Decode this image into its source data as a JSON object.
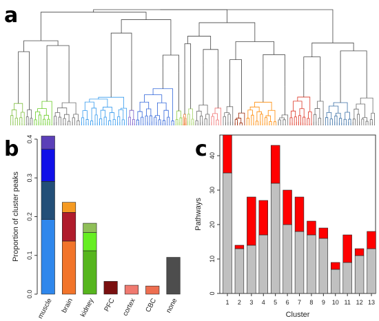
{
  "panels": {
    "a": "a",
    "b": "b",
    "c": "c"
  },
  "chart_data": [
    {
      "panel": "a",
      "type": "dendrogram",
      "leaf_color_groups": [
        {
          "color": "#7fbf3f",
          "weight": 4
        },
        {
          "color": "#6a6a6a",
          "weight": 2
        },
        {
          "color": "#66cc22",
          "weight": 5
        },
        {
          "color": "#6a6a6a",
          "weight": 7
        },
        {
          "color": "#3399ee",
          "weight": 12
        },
        {
          "color": "#7a5cc8",
          "weight": 2
        },
        {
          "color": "#2e63d9",
          "weight": 10
        },
        {
          "color": "#8dcc44",
          "weight": 2
        },
        {
          "color": "#ee8844",
          "weight": 1
        },
        {
          "color": "#a0d060",
          "weight": 2
        },
        {
          "color": "#6a6a6a",
          "weight": 4
        },
        {
          "color": "#f07070",
          "weight": 3
        },
        {
          "color": "#6a6a6a",
          "weight": 3
        },
        {
          "color": "#992200",
          "weight": 3
        },
        {
          "color": "#ff8800",
          "weight": 8
        },
        {
          "color": "#6a6a6a",
          "weight": 3
        },
        {
          "color": "#dd3322",
          "weight": 6
        },
        {
          "color": "#6a6a6a",
          "weight": 3
        },
        {
          "color": "#3a6fa5",
          "weight": 7
        },
        {
          "color": "#6a6a6a",
          "weight": 6
        }
      ]
    },
    {
      "panel": "b",
      "type": "bar",
      "stacked": true,
      "categories": [
        "muscle",
        "brain",
        "kidney",
        "PFC",
        "cortex",
        "CBC",
        "none"
      ],
      "ylabel": "Proportion of cluster peaks",
      "ylim": [
        0,
        0.4
      ],
      "yticks": [
        0.0,
        0.1,
        0.2,
        0.3,
        0.4
      ],
      "ytick_labels": [
        "0.0",
        "0.1",
        "0.2",
        "0.3",
        "0.4"
      ],
      "stacks": [
        [
          {
            "value": 0.193,
            "color": "#2f87ec"
          },
          {
            "value": 0.098,
            "color": "#234f78"
          },
          {
            "value": 0.083,
            "color": "#1010e8"
          },
          {
            "value": 0.034,
            "color": "#5b3fb8"
          }
        ],
        [
          {
            "value": 0.137,
            "color": "#f2742a"
          },
          {
            "value": 0.074,
            "color": "#b01c2c"
          },
          {
            "value": 0.026,
            "color": "#f59a22"
          }
        ],
        [
          {
            "value": 0.112,
            "color": "#56b51e"
          },
          {
            "value": 0.047,
            "color": "#66ee22"
          },
          {
            "value": 0.024,
            "color": "#8fbf58"
          }
        ],
        [
          {
            "value": 0.033,
            "color": "#7a1010"
          }
        ],
        [
          {
            "value": 0.023,
            "color": "#f07a70"
          }
        ],
        [
          {
            "value": 0.021,
            "color": "#ee6e50"
          }
        ],
        [
          {
            "value": 0.095,
            "color": "#4d4d4d"
          }
        ]
      ]
    },
    {
      "panel": "c",
      "type": "bar",
      "stacked": true,
      "categories": [
        "1",
        "2",
        "3",
        "4",
        "5",
        "6",
        "7",
        "8",
        "9",
        "10",
        "11",
        "12",
        "13"
      ],
      "xlabel": "Cluster",
      "ylabel": "Pathways",
      "ylim": [
        0,
        46
      ],
      "yticks": [
        0,
        10,
        20,
        30,
        40
      ],
      "series": [
        {
          "color": "#c0c0c0",
          "values": [
            35,
            13,
            14,
            17,
            32,
            20,
            18,
            17,
            16,
            7,
            9,
            11,
            13
          ]
        },
        {
          "color": "#ff0000",
          "values": [
            11,
            1,
            14,
            10,
            11,
            10,
            10,
            4,
            3,
            2,
            8,
            2,
            5
          ]
        }
      ]
    }
  ]
}
